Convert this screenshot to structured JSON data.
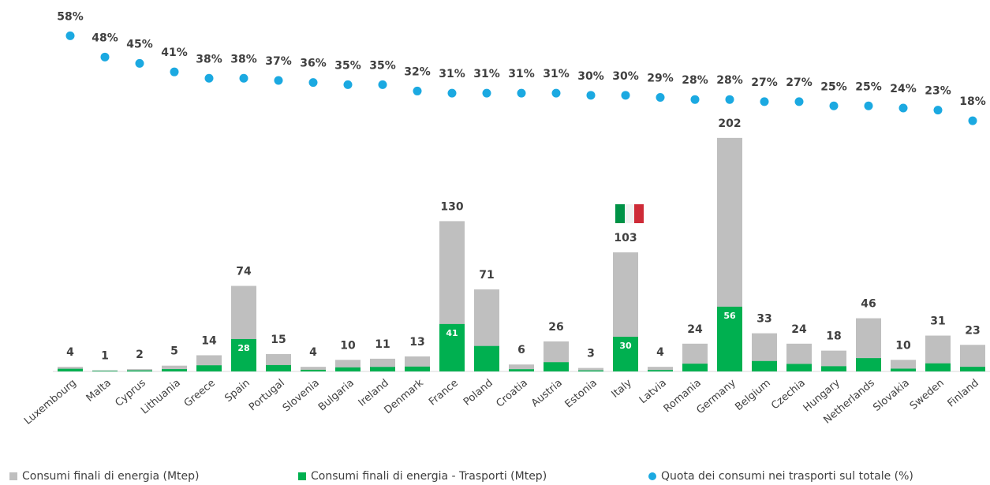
{
  "chart_data": {
    "type": "bar",
    "barmode": "overlay",
    "categories": [
      "Luxembourg",
      "Malta",
      "Cyprus",
      "Lithuania",
      "Greece",
      "Spain",
      "Portugal",
      "Slovenia",
      "Bulgaria",
      "Ireland",
      "Denmark",
      "France",
      "Poland",
      "Croatia",
      "Austria",
      "Estonia",
      "Italy",
      "Latvia",
      "Romania",
      "Germany",
      "Belgium",
      "Czechia",
      "Hungary",
      "Netherlands",
      "Slovakia",
      "Sweden",
      "Finland"
    ],
    "series": [
      {
        "name": "Consumi finali di energia (Mtep)",
        "color": "#bfbfbf",
        "values": [
          4,
          1,
          2,
          5,
          14,
          74,
          15,
          4,
          10,
          11,
          13,
          130,
          71,
          6,
          26,
          3,
          103,
          4,
          24,
          202,
          33,
          24,
          18,
          46,
          10,
          31,
          23
        ]
      },
      {
        "name": "Consumi finali di energia - Trasporti (Mtep)",
        "color": "#00b050",
        "values": [
          2.3,
          0.5,
          0.9,
          2,
          5.3,
          28,
          5.5,
          1.4,
          3.5,
          3.9,
          4.2,
          41,
          22,
          1.9,
          8,
          0.9,
          30,
          1.2,
          6.7,
          56,
          9,
          6.5,
          4.5,
          11.5,
          2.4,
          7,
          4
        ],
        "value_labels": [
          null,
          null,
          null,
          null,
          null,
          "28",
          null,
          null,
          null,
          null,
          null,
          "41",
          null,
          null,
          null,
          null,
          "30",
          null,
          null,
          "56",
          null,
          null,
          null,
          null,
          null,
          null,
          null
        ]
      },
      {
        "name": "Quota dei consumi nei trasporti sul totale (%)",
        "color": "#1ba9e1",
        "type": "scatter",
        "axis": "y2",
        "values": [
          58,
          48,
          45,
          41,
          38,
          38,
          37,
          36,
          35,
          35,
          32,
          31,
          31,
          31,
          31,
          30,
          30,
          29,
          28,
          28,
          27,
          27,
          25,
          25,
          24,
          23,
          18
        ],
        "value_labels": [
          "58%",
          "48%",
          "45%",
          "41%",
          "38%",
          "38%",
          "37%",
          "36%",
          "35%",
          "35%",
          "32%",
          "31%",
          "31%",
          "31%",
          "31%",
          "30%",
          "30%",
          "29%",
          "28%",
          "28%",
          "27%",
          "27%",
          "25%",
          "25%",
          "24%",
          "23%",
          "18%"
        ]
      }
    ],
    "ylim": [
      0,
      294
    ],
    "y2lim": [
      -100,
      60
    ],
    "grid": false,
    "legend": "bottom"
  }
}
